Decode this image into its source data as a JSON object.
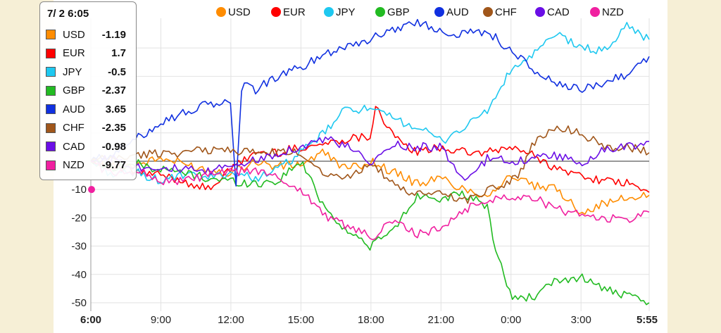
{
  "chart_data": {
    "type": "line",
    "title": "",
    "xlabel": "",
    "ylabel": "",
    "ylim": [
      -52,
      48
    ],
    "y_ticks": [
      -50,
      -40,
      -30,
      -20,
      -10
    ],
    "x_ticks": [
      "6:00",
      "9:00",
      "12:00",
      "15:00",
      "18:00",
      "21:00",
      "0:00",
      "3:00",
      "5:55"
    ],
    "x_tick_positions_hours": [
      0,
      3,
      6,
      9,
      12,
      15,
      18,
      21,
      23.92
    ],
    "x_range_hours": [
      0,
      23.92
    ],
    "zero_line": true,
    "legend_position": "top",
    "series": [
      {
        "name": "USD",
        "color": "#ff8c00",
        "points": [
          [
            0,
            0
          ],
          [
            1,
            -2
          ],
          [
            2,
            -1
          ],
          [
            3,
            1
          ],
          [
            4,
            -1
          ],
          [
            5,
            -3
          ],
          [
            6,
            -4
          ],
          [
            7,
            0
          ],
          [
            8,
            -2
          ],
          [
            9,
            -1
          ],
          [
            10,
            3
          ],
          [
            11,
            -3
          ],
          [
            12,
            0
          ],
          [
            13,
            -4
          ],
          [
            14,
            -8
          ],
          [
            15,
            -6
          ],
          [
            16,
            -10
          ],
          [
            17,
            -12
          ],
          [
            18,
            -5
          ],
          [
            19,
            -9
          ],
          [
            20,
            -10
          ],
          [
            21,
            -18
          ],
          [
            22,
            -15
          ],
          [
            23,
            -13
          ],
          [
            23.92,
            -12
          ]
        ]
      },
      {
        "name": "EUR",
        "color": "#ff0000",
        "points": [
          [
            0,
            0
          ],
          [
            1,
            -2
          ],
          [
            2,
            -4
          ],
          [
            3,
            -5
          ],
          [
            4,
            -7
          ],
          [
            5,
            -10
          ],
          [
            6,
            -3
          ],
          [
            7,
            3
          ],
          [
            8,
            3
          ],
          [
            9,
            5
          ],
          [
            10,
            6
          ],
          [
            11,
            8
          ],
          [
            12,
            9
          ],
          [
            12.2,
            20
          ],
          [
            13,
            8
          ],
          [
            14,
            3
          ],
          [
            15,
            5
          ],
          [
            16,
            3
          ],
          [
            17,
            3
          ],
          [
            18,
            5
          ],
          [
            19,
            2
          ],
          [
            20,
            -3
          ],
          [
            21,
            -5
          ],
          [
            22,
            -7
          ],
          [
            23,
            -8
          ],
          [
            23.92,
            -11
          ]
        ]
      },
      {
        "name": "JPY",
        "color": "#1ec8f0",
        "points": [
          [
            0,
            0
          ],
          [
            1,
            -5
          ],
          [
            2,
            -4
          ],
          [
            3,
            -7
          ],
          [
            4,
            -5
          ],
          [
            5,
            -6
          ],
          [
            6,
            -4
          ],
          [
            7,
            -6
          ],
          [
            8,
            -3
          ],
          [
            9,
            3
          ],
          [
            10,
            10
          ],
          [
            11,
            19
          ],
          [
            12,
            18
          ],
          [
            13,
            15
          ],
          [
            14,
            12
          ],
          [
            15,
            7
          ],
          [
            16,
            12
          ],
          [
            17,
            18
          ],
          [
            18,
            32
          ],
          [
            19,
            38
          ],
          [
            20,
            45
          ],
          [
            21,
            40
          ],
          [
            22,
            39
          ],
          [
            23,
            48
          ],
          [
            23.92,
            43
          ]
        ]
      },
      {
        "name": "GBP",
        "color": "#22bb22",
        "points": [
          [
            0,
            0
          ],
          [
            1,
            -2
          ],
          [
            2,
            -1
          ],
          [
            3,
            -3
          ],
          [
            4,
            -4
          ],
          [
            5,
            -6
          ],
          [
            6,
            -7
          ],
          [
            7,
            -8
          ],
          [
            8,
            -7
          ],
          [
            9,
            0
          ],
          [
            10,
            -16
          ],
          [
            11,
            -25
          ],
          [
            12,
            -30
          ],
          [
            13,
            -24
          ],
          [
            14,
            -12
          ],
          [
            15,
            -13
          ],
          [
            16,
            -12
          ],
          [
            17,
            -16
          ],
          [
            17.3,
            -30
          ],
          [
            18,
            -48
          ],
          [
            19,
            -48
          ],
          [
            20,
            -42
          ],
          [
            21,
            -41
          ],
          [
            22,
            -45
          ],
          [
            23,
            -48
          ],
          [
            23.92,
            -50
          ]
        ]
      },
      {
        "name": "AUD",
        "color": "#1030e0",
        "points": [
          [
            0,
            0
          ],
          [
            1,
            3
          ],
          [
            2,
            8
          ],
          [
            3,
            14
          ],
          [
            4,
            17
          ],
          [
            5,
            20
          ],
          [
            6,
            21
          ],
          [
            6.2,
            -10
          ],
          [
            6.5,
            29
          ],
          [
            7,
            25
          ],
          [
            8,
            30
          ],
          [
            9,
            33
          ],
          [
            10,
            38
          ],
          [
            11,
            41
          ],
          [
            12,
            43
          ],
          [
            13,
            47
          ],
          [
            14,
            49
          ],
          [
            15,
            46
          ],
          [
            16,
            45
          ],
          [
            17,
            46
          ],
          [
            18,
            39
          ],
          [
            19,
            32
          ],
          [
            20,
            27
          ],
          [
            21,
            25
          ],
          [
            22,
            28
          ],
          [
            23,
            31
          ],
          [
            23.92,
            37
          ]
        ]
      },
      {
        "name": "CHF",
        "color": "#a0561a",
        "points": [
          [
            0,
            0
          ],
          [
            1,
            1
          ],
          [
            2,
            2
          ],
          [
            3,
            3
          ],
          [
            4,
            3
          ],
          [
            5,
            4
          ],
          [
            6,
            4
          ],
          [
            7,
            3
          ],
          [
            8,
            3
          ],
          [
            9,
            3
          ],
          [
            10,
            -4
          ],
          [
            11,
            -6
          ],
          [
            12,
            0
          ],
          [
            13,
            -9
          ],
          [
            14,
            -12
          ],
          [
            15,
            -11
          ],
          [
            16,
            -14
          ],
          [
            17,
            -10
          ],
          [
            18,
            -7
          ],
          [
            18.5,
            -3
          ],
          [
            19,
            7
          ],
          [
            20,
            12
          ],
          [
            21,
            10
          ],
          [
            22,
            5
          ],
          [
            23,
            5
          ],
          [
            23.92,
            3
          ]
        ]
      },
      {
        "name": "CAD",
        "color": "#6a0ee6",
        "points": [
          [
            0,
            0
          ],
          [
            1,
            1
          ],
          [
            2,
            -2
          ],
          [
            3,
            -2
          ],
          [
            4,
            -3
          ],
          [
            5,
            -4
          ],
          [
            6,
            -1
          ],
          [
            7,
            0
          ],
          [
            8,
            3
          ],
          [
            9,
            5
          ],
          [
            10,
            8
          ],
          [
            11,
            5
          ],
          [
            12,
            -1
          ],
          [
            13,
            6
          ],
          [
            14,
            5
          ],
          [
            15,
            5
          ],
          [
            16,
            -8
          ],
          [
            17,
            1
          ],
          [
            18,
            0
          ],
          [
            19,
            1
          ],
          [
            20,
            2
          ],
          [
            21,
            -1
          ],
          [
            22,
            4
          ],
          [
            23,
            5
          ],
          [
            23.92,
            7
          ]
        ]
      },
      {
        "name": "NZD",
        "color": "#f020a0",
        "points": [
          [
            0,
            0
          ],
          [
            1,
            -5
          ],
          [
            2,
            -3
          ],
          [
            3,
            -7
          ],
          [
            4,
            -7
          ],
          [
            5,
            -5
          ],
          [
            6,
            -4
          ],
          [
            7,
            -3
          ],
          [
            8,
            -6
          ],
          [
            9,
            -10
          ],
          [
            10,
            -19
          ],
          [
            11,
            -23
          ],
          [
            12,
            -27
          ],
          [
            13,
            -21
          ],
          [
            14,
            -26
          ],
          [
            15,
            -24
          ],
          [
            16,
            -17
          ],
          [
            17,
            -14
          ],
          [
            18,
            -12
          ],
          [
            19,
            -13
          ],
          [
            20,
            -17
          ],
          [
            21,
            -19
          ],
          [
            22,
            -20
          ],
          [
            23,
            -21
          ],
          [
            23.92,
            -18
          ]
        ]
      }
    ],
    "tooltip": {
      "title": "7/ 2 6:05",
      "rows": [
        {
          "name": "USD",
          "value": "-1.19",
          "color": "#ff8c00"
        },
        {
          "name": "EUR",
          "value": "1.7",
          "color": "#ff0000"
        },
        {
          "name": "JPY",
          "value": "-0.5",
          "color": "#1ec8f0"
        },
        {
          "name": "GBP",
          "value": "-2.37",
          "color": "#22bb22"
        },
        {
          "name": "AUD",
          "value": "3.65",
          "color": "#1030e0"
        },
        {
          "name": "CHF",
          "value": "-2.35",
          "color": "#a0561a"
        },
        {
          "name": "CAD",
          "value": "-0.98",
          "color": "#6a0ee6"
        },
        {
          "name": "NZD",
          "value": "-9.77",
          "color": "#f020a0"
        }
      ]
    }
  }
}
